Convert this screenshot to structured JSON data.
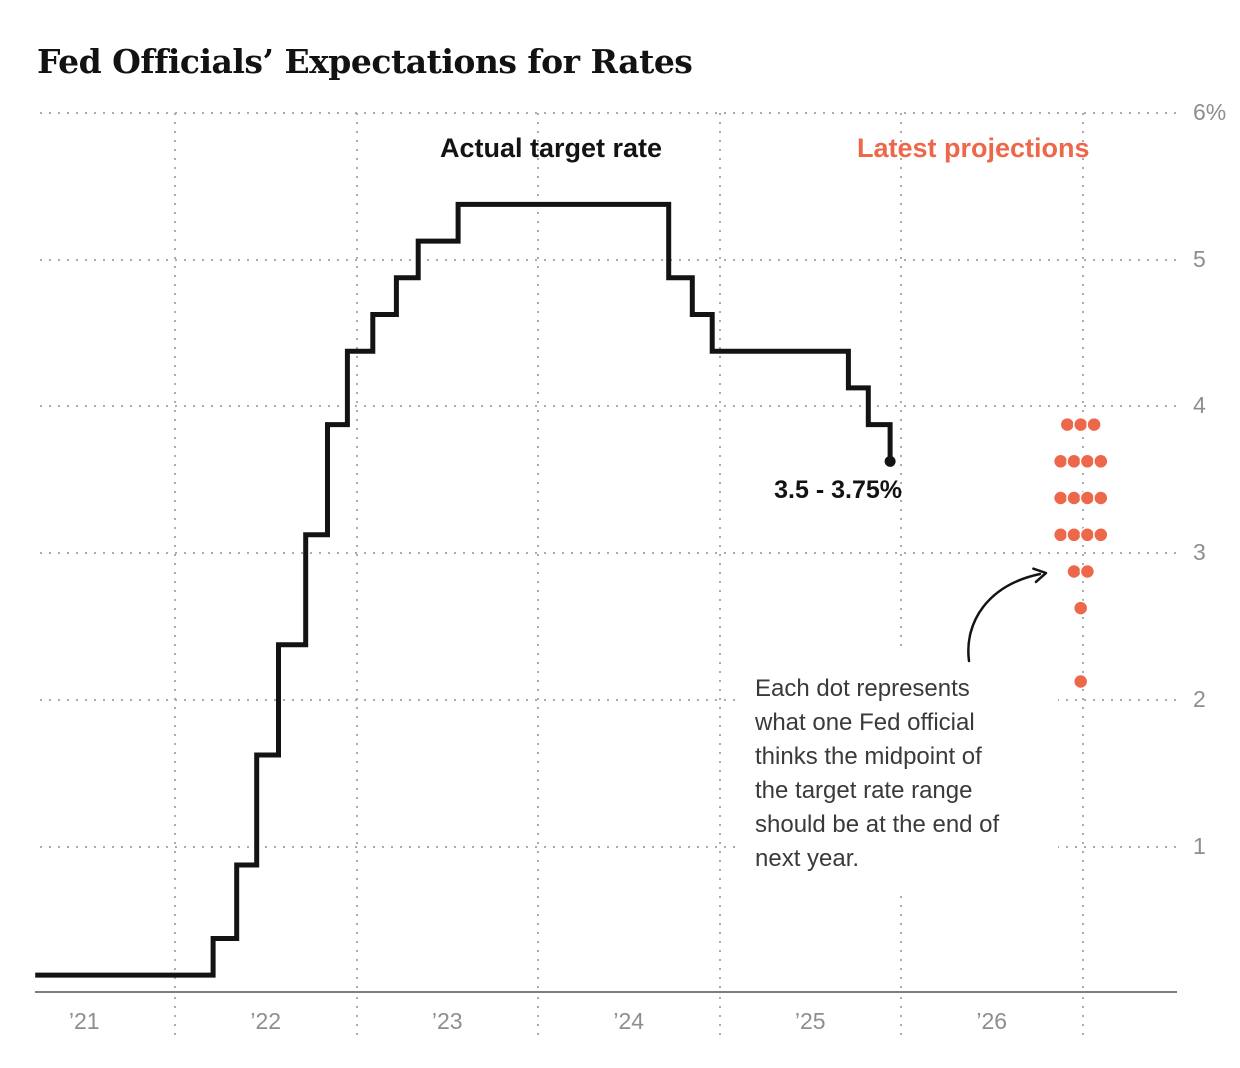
{
  "title": "Fed Officials’ Expectations for Rates",
  "legend": {
    "actual": "Actual target rate",
    "projections": "Latest projections"
  },
  "annotation": {
    "lines": [
      "Each dot represents",
      "what one Fed official",
      "thinks the midpoint of",
      "the target rate range",
      "should be at the end of",
      "next year."
    ]
  },
  "colors": {
    "accent": "#ED684A",
    "line": "#131313",
    "axis_text": "#8E8E8E",
    "grid_dots": "#ABABAB",
    "axis_line": "#7E7E7E",
    "annotation_text": "#3A3A3A"
  },
  "chart_data": {
    "type": "line",
    "subtype": "step-line with dot plot",
    "title": "Fed Officials’ Expectations for Rates",
    "ylim": [
      0,
      6
    ],
    "grid": true,
    "legend_position": "top-inside",
    "y_ticks": [
      {
        "value": 6,
        "label": "6%"
      },
      {
        "value": 5,
        "label": "5"
      },
      {
        "value": 4,
        "label": "4"
      },
      {
        "value": 3,
        "label": "3"
      },
      {
        "value": 2,
        "label": "2"
      },
      {
        "value": 1,
        "label": "1"
      }
    ],
    "x_ticks": [
      {
        "year": 2021,
        "label": "’21"
      },
      {
        "year": 2022,
        "label": "’22"
      },
      {
        "year": 2023,
        "label": "’23"
      },
      {
        "year": 2024,
        "label": "’24"
      },
      {
        "year": 2025,
        "label": "’25"
      },
      {
        "year": 2026,
        "label": "’26"
      }
    ],
    "x_grid_years": [
      2022,
      2023,
      2024,
      2025,
      2026,
      2027
    ],
    "series": [
      {
        "name": "Actual target rate",
        "type": "step",
        "color": "#131313",
        "points": [
          [
            2021.23,
            0.125
          ],
          [
            2022.21,
            0.375
          ],
          [
            2022.34,
            0.875
          ],
          [
            2022.45,
            1.625
          ],
          [
            2022.57,
            2.375
          ],
          [
            2022.72,
            3.125
          ],
          [
            2022.84,
            3.875
          ],
          [
            2022.95,
            4.375
          ],
          [
            2023.09,
            4.625
          ],
          [
            2023.22,
            4.875
          ],
          [
            2023.34,
            5.125
          ],
          [
            2023.56,
            5.375
          ],
          [
            2024.72,
            4.875
          ],
          [
            2024.85,
            4.625
          ],
          [
            2024.96,
            4.375
          ],
          [
            2025.71,
            4.125
          ],
          [
            2025.82,
            3.875
          ],
          [
            2025.94,
            3.625
          ]
        ]
      },
      {
        "name": "Latest projections",
        "type": "dot_plot",
        "color": "#ED684A",
        "x": 2026.99,
        "rows": [
          {
            "rate": 3.875,
            "count": 3
          },
          {
            "rate": 3.625,
            "count": 4
          },
          {
            "rate": 3.375,
            "count": 4
          },
          {
            "rate": 3.125,
            "count": 4
          },
          {
            "rate": 2.875,
            "count": 2
          },
          {
            "rate": 2.625,
            "count": 1
          },
          {
            "rate": 2.125,
            "count": 1
          }
        ]
      }
    ],
    "end_point": {
      "x": 2025.94,
      "rate": 3.625,
      "label": "3.5 - 3.75%"
    }
  }
}
